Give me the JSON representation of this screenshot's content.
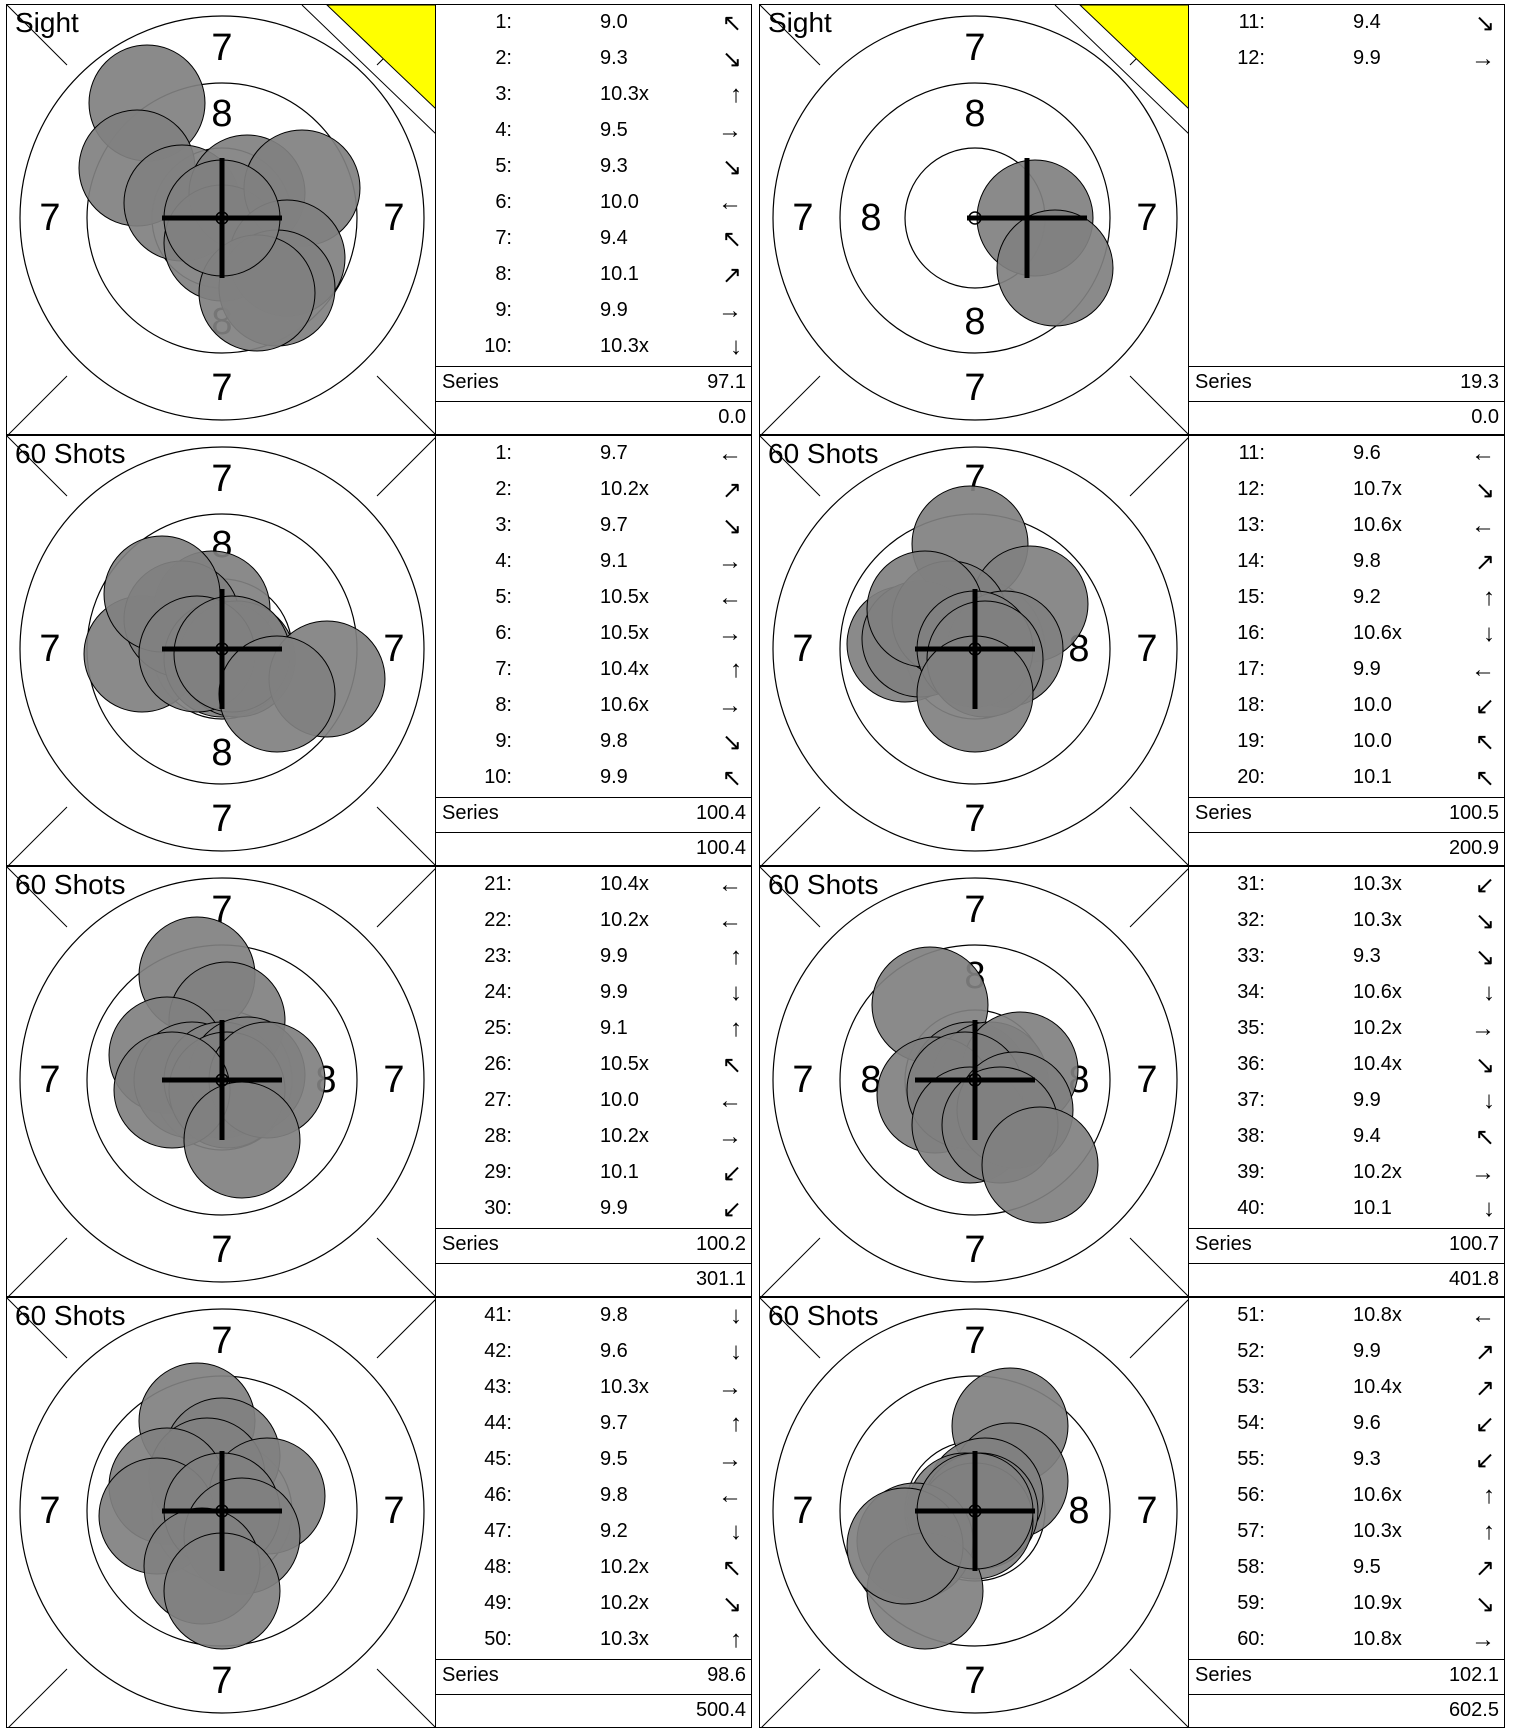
{
  "panels": [
    {
      "label": "Sight",
      "sighter": true,
      "rings": {
        "top": "7",
        "top_inner": "8",
        "left": "7",
        "right": "7",
        "bottom_inner": "8",
        "bottom": "7"
      },
      "shots": [
        {
          "n": "1:",
          "v": "9.0",
          "d": "↖"
        },
        {
          "n": "2:",
          "v": "9.3",
          "d": "↘"
        },
        {
          "n": "3:",
          "v": "10.3x",
          "d": "↑"
        },
        {
          "n": "4:",
          "v": "9.5",
          "d": "→"
        },
        {
          "n": "5:",
          "v": "9.3",
          "d": "↘"
        },
        {
          "n": "6:",
          "v": "10.0",
          "d": "←"
        },
        {
          "n": "7:",
          "v": "9.4",
          "d": "↖"
        },
        {
          "n": "8:",
          "v": "10.1",
          "d": "↗"
        },
        {
          "n": "9:",
          "v": "9.9",
          "d": "→"
        },
        {
          "n": "10:",
          "v": "10.3x",
          "d": "↓"
        }
      ],
      "series_label": "Series",
      "series": "97.1",
      "total": "0.0"
    },
    {
      "label": "Sight",
      "sighter": true,
      "rings": {
        "top": "7",
        "top_inner": "8",
        "left": "7",
        "left_inner": "8",
        "right": "7",
        "bottom_inner": "8",
        "bottom": "7"
      },
      "shots": [
        {
          "n": "11:",
          "v": "9.4",
          "d": "↘"
        },
        {
          "n": "12:",
          "v": "9.9",
          "d": "→"
        }
      ],
      "series_label": "Series",
      "series": "19.3",
      "total": "0.0"
    },
    {
      "label": "60 Shots",
      "sighter": false,
      "rings": {
        "top": "7",
        "top_inner": "8",
        "left": "7",
        "right": "7",
        "bottom_inner": "8",
        "bottom": "7"
      },
      "shots": [
        {
          "n": "1:",
          "v": "9.7",
          "d": "←"
        },
        {
          "n": "2:",
          "v": "10.2x",
          "d": "↗"
        },
        {
          "n": "3:",
          "v": "9.7",
          "d": "↘"
        },
        {
          "n": "4:",
          "v": "9.1",
          "d": "→"
        },
        {
          "n": "5:",
          "v": "10.5x",
          "d": "←"
        },
        {
          "n": "6:",
          "v": "10.5x",
          "d": "→"
        },
        {
          "n": "7:",
          "v": "10.4x",
          "d": "↑"
        },
        {
          "n": "8:",
          "v": "10.6x",
          "d": "→"
        },
        {
          "n": "9:",
          "v": "9.8",
          "d": "↘"
        },
        {
          "n": "10:",
          "v": "9.9",
          "d": "↖"
        }
      ],
      "series_label": "Series",
      "series": "100.4",
      "total": "100.4"
    },
    {
      "label": "60 Shots",
      "sighter": false,
      "rings": {
        "top": "7",
        "left": "7",
        "right": "7",
        "right_inner": "8",
        "bottom": "7"
      },
      "shots": [
        {
          "n": "11:",
          "v": "9.6",
          "d": "←"
        },
        {
          "n": "12:",
          "v": "10.7x",
          "d": "↘"
        },
        {
          "n": "13:",
          "v": "10.6x",
          "d": "←"
        },
        {
          "n": "14:",
          "v": "9.8",
          "d": "↗"
        },
        {
          "n": "15:",
          "v": "9.2",
          "d": "↑"
        },
        {
          "n": "16:",
          "v": "10.6x",
          "d": "↓"
        },
        {
          "n": "17:",
          "v": "9.9",
          "d": "←"
        },
        {
          "n": "18:",
          "v": "10.0",
          "d": "↙"
        },
        {
          "n": "19:",
          "v": "10.0",
          "d": "↖"
        },
        {
          "n": "20:",
          "v": "10.1",
          "d": "↖"
        }
      ],
      "series_label": "Series",
      "series": "100.5",
      "total": "200.9"
    },
    {
      "label": "60 Shots",
      "sighter": false,
      "rings": {
        "top": "7",
        "left": "7",
        "right": "7",
        "right_inner": "8",
        "bottom": "7"
      },
      "shots": [
        {
          "n": "21:",
          "v": "10.4x",
          "d": "←"
        },
        {
          "n": "22:",
          "v": "10.2x",
          "d": "←"
        },
        {
          "n": "23:",
          "v": "9.9",
          "d": "↑"
        },
        {
          "n": "24:",
          "v": "9.9",
          "d": "↓"
        },
        {
          "n": "25:",
          "v": "9.1",
          "d": "↑"
        },
        {
          "n": "26:",
          "v": "10.5x",
          "d": "↖"
        },
        {
          "n": "27:",
          "v": "10.0",
          "d": "←"
        },
        {
          "n": "28:",
          "v": "10.2x",
          "d": "→"
        },
        {
          "n": "29:",
          "v": "10.1",
          "d": "↙"
        },
        {
          "n": "30:",
          "v": "9.9",
          "d": "↙"
        }
      ],
      "series_label": "Series",
      "series": "100.2",
      "total": "301.1"
    },
    {
      "label": "60 Shots",
      "sighter": false,
      "rings": {
        "top": "7",
        "top_inner": "8",
        "left": "7",
        "left_inner": "8",
        "right": "7",
        "right_inner": "8",
        "bottom": "7"
      },
      "shots": [
        {
          "n": "31:",
          "v": "10.3x",
          "d": "↙"
        },
        {
          "n": "32:",
          "v": "10.3x",
          "d": "↘"
        },
        {
          "n": "33:",
          "v": "9.3",
          "d": "↘"
        },
        {
          "n": "34:",
          "v": "10.6x",
          "d": "↓"
        },
        {
          "n": "35:",
          "v": "10.2x",
          "d": "→"
        },
        {
          "n": "36:",
          "v": "10.4x",
          "d": "↘"
        },
        {
          "n": "37:",
          "v": "9.9",
          "d": "↓"
        },
        {
          "n": "38:",
          "v": "9.4",
          "d": "↖"
        },
        {
          "n": "39:",
          "v": "10.2x",
          "d": "→"
        },
        {
          "n": "40:",
          "v": "10.1",
          "d": "↓"
        }
      ],
      "series_label": "Series",
      "series": "100.7",
      "total": "401.8"
    },
    {
      "label": "60 Shots",
      "sighter": false,
      "rings": {
        "top": "7",
        "left": "7",
        "right": "7",
        "bottom": "7"
      },
      "shots": [
        {
          "n": "41:",
          "v": "9.8",
          "d": "↓"
        },
        {
          "n": "42:",
          "v": "9.6",
          "d": "↓"
        },
        {
          "n": "43:",
          "v": "10.3x",
          "d": "→"
        },
        {
          "n": "44:",
          "v": "9.7",
          "d": "↑"
        },
        {
          "n": "45:",
          "v": "9.5",
          "d": "→"
        },
        {
          "n": "46:",
          "v": "9.8",
          "d": "←"
        },
        {
          "n": "47:",
          "v": "9.2",
          "d": "↓"
        },
        {
          "n": "48:",
          "v": "10.2x",
          "d": "↖"
        },
        {
          "n": "49:",
          "v": "10.2x",
          "d": "↘"
        },
        {
          "n": "50:",
          "v": "10.3x",
          "d": "↑"
        }
      ],
      "series_label": "Series",
      "series": "98.6",
      "total": "500.4"
    },
    {
      "label": "60 Shots",
      "sighter": false,
      "rings": {
        "top": "7",
        "left": "7",
        "right": "7",
        "right_inner": "8",
        "bottom": "7"
      },
      "shots": [
        {
          "n": "51:",
          "v": "10.8x",
          "d": "←"
        },
        {
          "n": "52:",
          "v": "9.9",
          "d": "↗"
        },
        {
          "n": "53:",
          "v": "10.4x",
          "d": "↗"
        },
        {
          "n": "54:",
          "v": "9.6",
          "d": "↙"
        },
        {
          "n": "55:",
          "v": "9.3",
          "d": "↙"
        },
        {
          "n": "56:",
          "v": "10.6x",
          "d": "↑"
        },
        {
          "n": "57:",
          "v": "10.3x",
          "d": "↑"
        },
        {
          "n": "58:",
          "v": "9.5",
          "d": "↗"
        },
        {
          "n": "59:",
          "v": "10.9x",
          "d": "↘"
        },
        {
          "n": "60:",
          "v": "10.8x",
          "d": "→"
        }
      ],
      "series_label": "Series",
      "series": "102.1",
      "total": "602.5"
    }
  ],
  "colors": {
    "shot_fill": "#808080",
    "sighter_flag": "#ffff00",
    "line": "#000000"
  }
}
